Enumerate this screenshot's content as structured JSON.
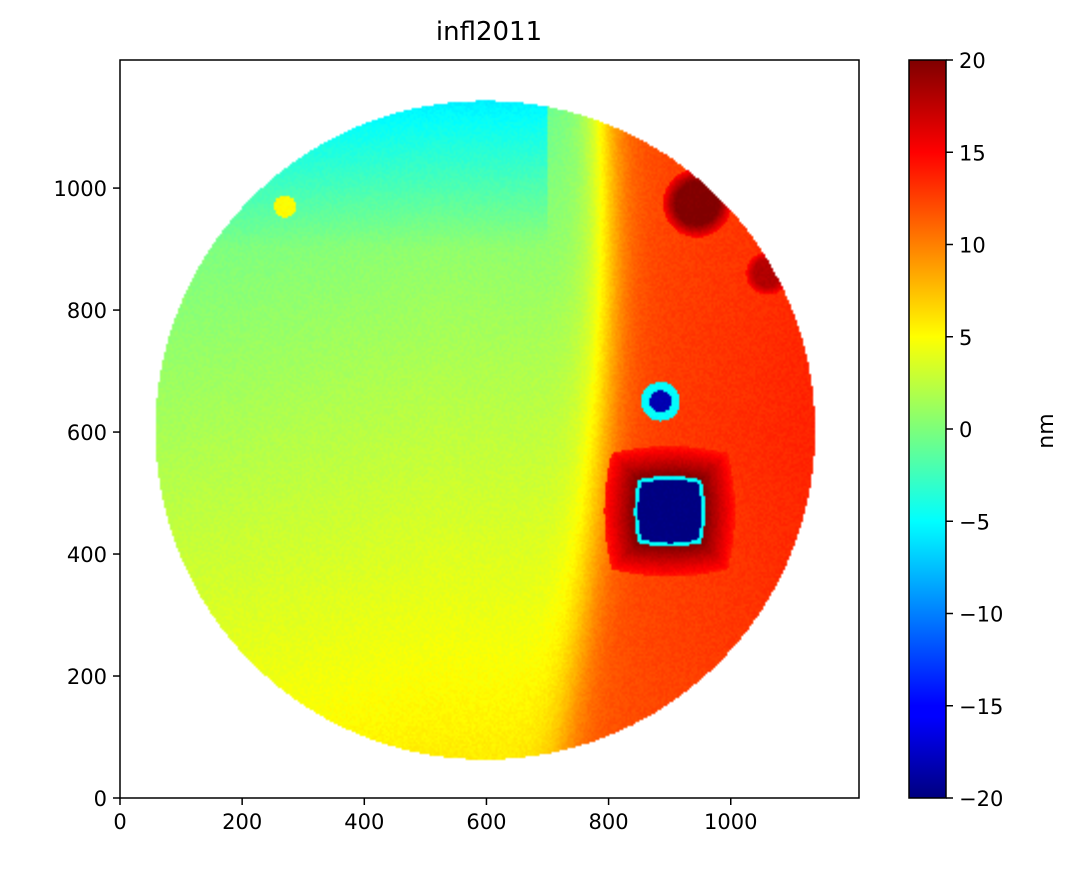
{
  "chart_data": {
    "type": "heatmap",
    "title": "infl2011",
    "xlabel": "",
    "ylabel": "",
    "xlim": [
      0,
      1210
    ],
    "ylim": [
      0,
      1210
    ],
    "x_ticks": [
      0,
      200,
      400,
      600,
      800,
      1000
    ],
    "y_ticks": [
      0,
      200,
      400,
      600,
      800,
      1000
    ],
    "x_tick_labels": [
      "0",
      "200",
      "400",
      "600",
      "800",
      "1000"
    ],
    "y_tick_labels": [
      "0",
      "200",
      "400",
      "600",
      "800",
      "1000"
    ],
    "colormap": "jet",
    "colorbar": {
      "label": "nm",
      "range": [
        -20,
        20
      ],
      "ticks": [
        20,
        15,
        10,
        5,
        0,
        -5,
        -10,
        -15,
        -20
      ],
      "tick_labels": [
        "20",
        "15",
        "10",
        "5",
        "0",
        "−5",
        "−10",
        "−15",
        "−20"
      ]
    },
    "aperture": {
      "center": [
        598,
        603
      ],
      "radius": 540
    },
    "surface": {
      "description_values_nm": "left region ~0 to 3, right region ~10 to 16",
      "features": [
        {
          "kind": "deep-pit-square",
          "center": [
            900,
            470
          ],
          "halfsize": 52,
          "value": -20,
          "rim_value": 20
        },
        {
          "kind": "pit",
          "center": [
            885,
            650
          ],
          "radius": 18,
          "value": -18,
          "ring_value": -5
        },
        {
          "kind": "bump",
          "center": [
            945,
            975
          ],
          "radius": 35,
          "value": 20
        },
        {
          "kind": "bump",
          "center": [
            1060,
            860
          ],
          "radius": 22,
          "value": 18
        },
        {
          "kind": "spot",
          "center": [
            270,
            970
          ],
          "radius": 18,
          "value": 5
        }
      ]
    }
  }
}
